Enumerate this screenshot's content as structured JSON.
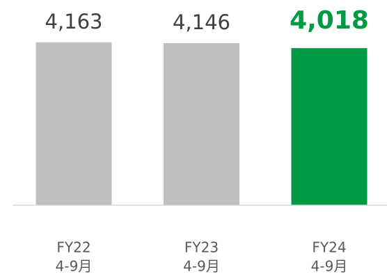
{
  "chart_data": {
    "type": "bar",
    "categories": [
      [
        "FY22",
        "4-9月"
      ],
      [
        "FY23",
        "4-9月"
      ],
      [
        "FY24",
        "4-9月"
      ]
    ],
    "values": [
      4163,
      4146,
      4018
    ],
    "value_labels": [
      "4,163",
      "4,146",
      "4,018"
    ],
    "colors": [
      "#bfbfbf",
      "#bfbfbf",
      "#009944"
    ],
    "value_label_colors": [
      "#404040",
      "#404040",
      "#009944"
    ],
    "highlight": 2,
    "ylim": [
      0,
      5000
    ]
  }
}
